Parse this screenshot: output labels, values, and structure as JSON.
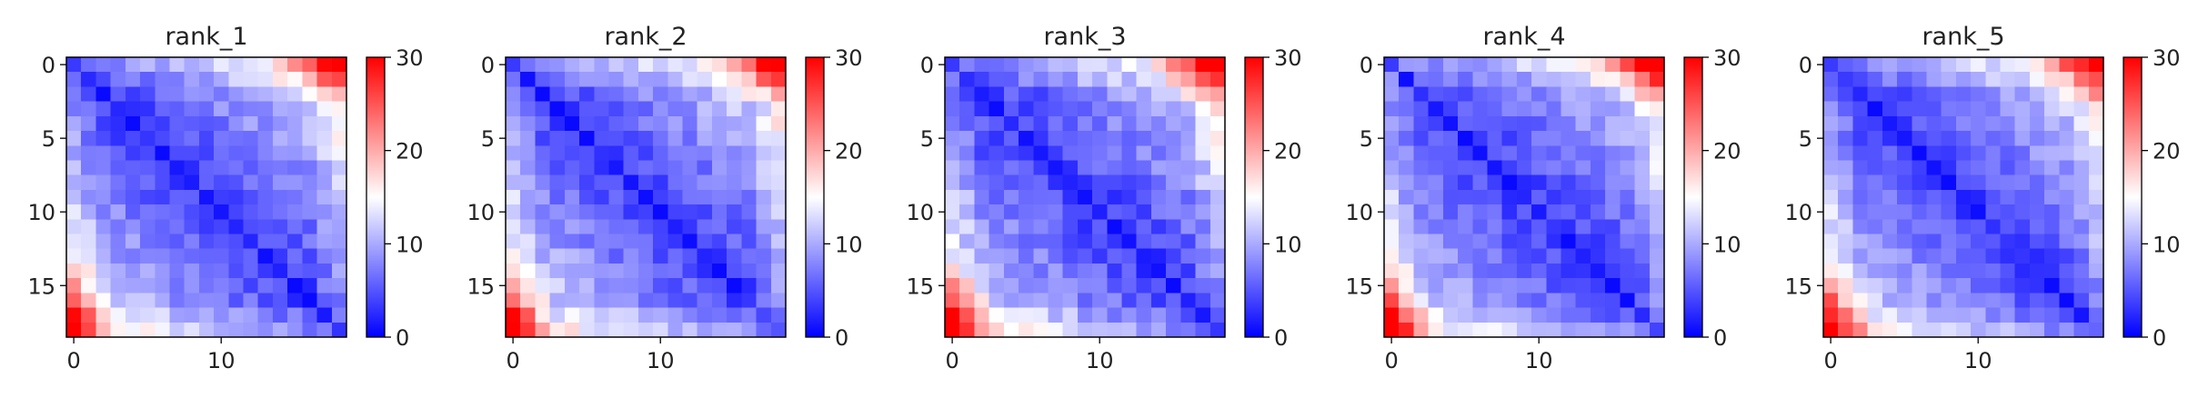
{
  "figure": {
    "background": "#ffffff"
  },
  "colormap": {
    "name": "bwr",
    "low": "#0000ff",
    "mid": "#ffffff",
    "high": "#ff0000",
    "vmin": 0,
    "vmax": 30
  },
  "chart_data": [
    {
      "type": "heatmap",
      "title": "rank_1",
      "n": 19,
      "x_ticks": [
        0,
        10
      ],
      "y_ticks": [
        0,
        5,
        10,
        15
      ],
      "colorbar_ticks": [
        0,
        10,
        20,
        30
      ],
      "base": 3.5,
      "slope": 0.6,
      "corner_boost": 14,
      "noise": 2,
      "seed": 11,
      "values_note": ""
    },
    {
      "type": "heatmap",
      "title": "rank_2",
      "n": 19,
      "x_ticks": [
        0,
        10
      ],
      "y_ticks": [
        0,
        5,
        10,
        15
      ],
      "colorbar_ticks": [
        0,
        10,
        20,
        30
      ],
      "base": 3.5,
      "slope": 0.62,
      "corner_boost": 13,
      "noise": 2,
      "seed": 23,
      "values_note": ""
    },
    {
      "type": "heatmap",
      "title": "rank_3",
      "n": 19,
      "x_ticks": [
        0,
        10
      ],
      "y_ticks": [
        0,
        5,
        10,
        15
      ],
      "colorbar_ticks": [
        0,
        10,
        20,
        30
      ],
      "base": 3.3,
      "slope": 0.62,
      "corner_boost": 14,
      "noise": 2.2,
      "seed": 37,
      "values_note": ""
    },
    {
      "type": "heatmap",
      "title": "rank_4",
      "n": 19,
      "x_ticks": [
        0,
        10
      ],
      "y_ticks": [
        0,
        5,
        10,
        15
      ],
      "colorbar_ticks": [
        0,
        10,
        20,
        30
      ],
      "base": 3.3,
      "slope": 0.6,
      "corner_boost": 13,
      "noise": 2,
      "seed": 41,
      "values_note": ""
    },
    {
      "type": "heatmap",
      "title": "rank_5",
      "n": 19,
      "x_ticks": [
        0,
        10
      ],
      "y_ticks": [
        0,
        5,
        10,
        15
      ],
      "colorbar_ticks": [
        0,
        10,
        20,
        30
      ],
      "base": 3.4,
      "slope": 0.62,
      "corner_boost": 13,
      "noise": 2,
      "seed": 53,
      "values_note": ""
    }
  ]
}
